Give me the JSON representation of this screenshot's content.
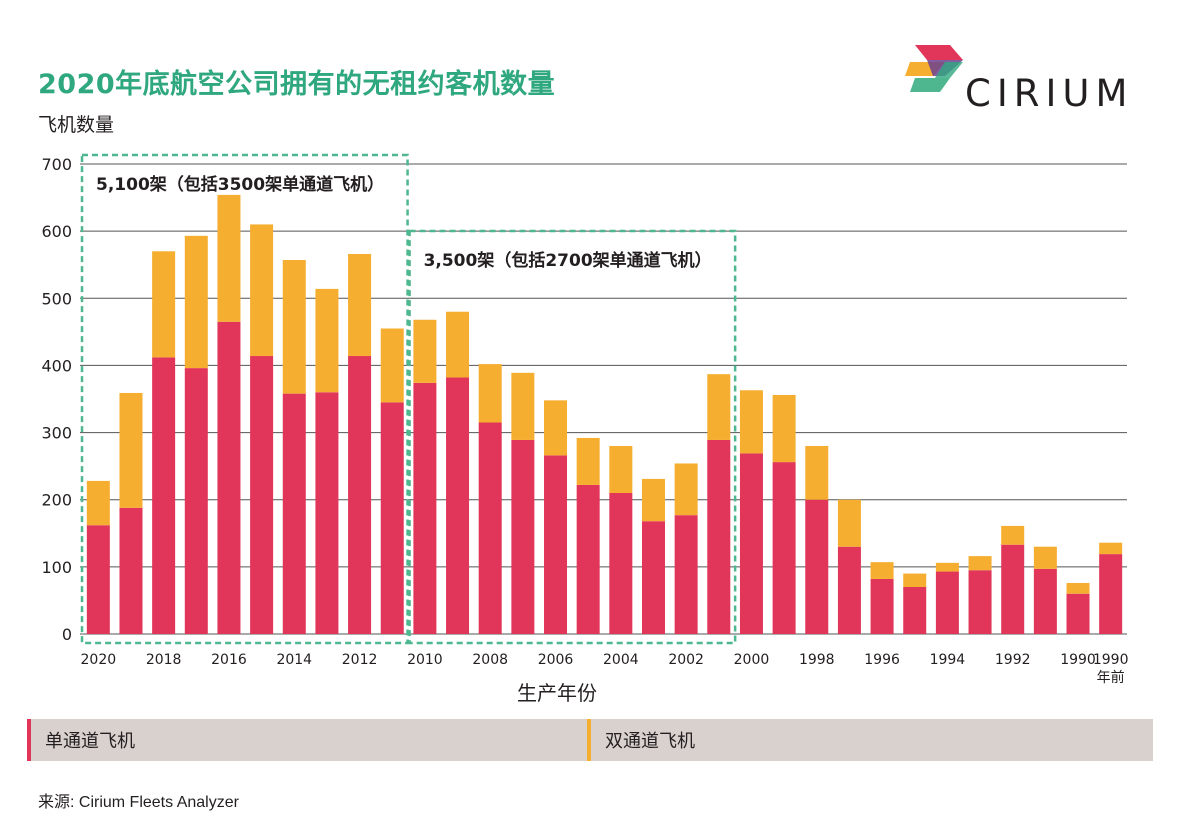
{
  "header": {
    "title": "2020年底航空公司拥有的无租约客机数量",
    "y_axis_label": "飞机数量",
    "logo_text": "CIRIUM"
  },
  "colors": {
    "title": "#2fa77f",
    "narrowbody": "#e1355a",
    "widebody": "#f5ae2f",
    "box": "#4fb78f",
    "legend_bg": "#d9d1cd",
    "grid": "#555555"
  },
  "chart_data": {
    "type": "bar",
    "stacked": true,
    "x_label": "生产年份",
    "ylim": [
      0,
      700
    ],
    "y_ticks": [
      0,
      100,
      200,
      300,
      400,
      500,
      600,
      700
    ],
    "categories": [
      "2020",
      "2019",
      "2018",
      "2017",
      "2016",
      "2015",
      "2014",
      "2013",
      "2012",
      "2011",
      "2010",
      "2009",
      "2008",
      "2007",
      "2006",
      "2005",
      "2004",
      "2003",
      "2002",
      "2001",
      "2000",
      "1999",
      "1998",
      "1997",
      "1996",
      "1995",
      "1994",
      "1993",
      "1992",
      "1991",
      "1990",
      "1990年前"
    ],
    "tick_labels": [
      "2020",
      "",
      "2018",
      "",
      "2016",
      "",
      "2014",
      "",
      "2012",
      "",
      "2010",
      "",
      "2008",
      "",
      "2006",
      "",
      "2004",
      "",
      "2002",
      "",
      "2000",
      "",
      "1998",
      "",
      "1996",
      "",
      "1994",
      "",
      "1992",
      "",
      "1990",
      "1990\n年前"
    ],
    "series": [
      {
        "name": "单通道飞机",
        "color": "#e1355a",
        "values": [
          162,
          188,
          412,
          396,
          465,
          414,
          358,
          360,
          414,
          345,
          374,
          382,
          315,
          289,
          266,
          222,
          210,
          168,
          177,
          289,
          269,
          256,
          200,
          130,
          82,
          70,
          93,
          95,
          133,
          97,
          60,
          119
        ]
      },
      {
        "name": "双通道飞机",
        "color": "#f5ae2f",
        "values": [
          66,
          171,
          158,
          197,
          189,
          196,
          199,
          154,
          152,
          110,
          94,
          98,
          87,
          100,
          82,
          70,
          70,
          63,
          77,
          98,
          94,
          100,
          80,
          70,
          25,
          20,
          13,
          21,
          28,
          33,
          16,
          17
        ]
      }
    ],
    "annotations": [
      {
        "text": "5,100架（包括3500架单通道飞机）",
        "from": "2020",
        "to": "2011"
      },
      {
        "text": "3,500架（包括2700架单通道飞机）",
        "from": "2010",
        "to": "2001"
      }
    ]
  },
  "legend": [
    {
      "label": "单通道飞机",
      "color": "#e1355a"
    },
    {
      "label": "双通道飞机",
      "color": "#f5ae2f"
    }
  ],
  "footer": {
    "source": "来源:  Cirium Fleets Analyzer"
  }
}
